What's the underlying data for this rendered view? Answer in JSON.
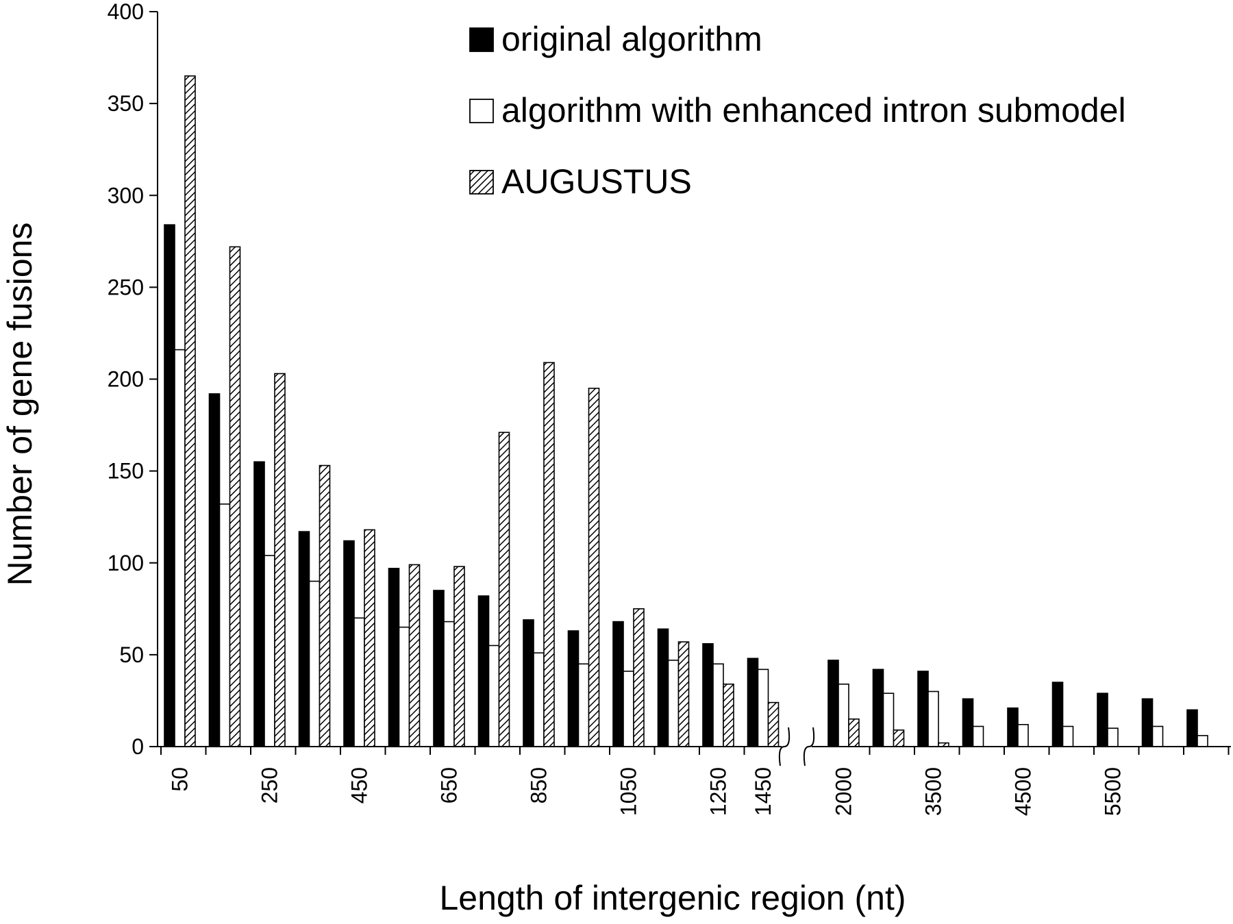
{
  "chart_data": {
    "type": "bar",
    "title": "",
    "xlabel": "Length of intergenic region (nt)",
    "ylabel": "Number of gene fusions",
    "ylim": [
      0,
      400
    ],
    "yticks": [
      0,
      50,
      100,
      150,
      200,
      250,
      300,
      350,
      400
    ],
    "grid": false,
    "legend_position": "top-right",
    "axis_break_after_index": 13,
    "x_tick_labels": [
      {
        "label": "50",
        "index": 0
      },
      {
        "label": "250",
        "index": 2
      },
      {
        "label": "450",
        "index": 4
      },
      {
        "label": "650",
        "index": 6
      },
      {
        "label": "850",
        "index": 8
      },
      {
        "label": "1050",
        "index": 10
      },
      {
        "label": "1250",
        "index": 12
      },
      {
        "label": "1450",
        "index": 13
      },
      {
        "label": "2000",
        "index": 14
      },
      {
        "label": "3500",
        "index": 16
      },
      {
        "label": "4500",
        "index": 18
      },
      {
        "label": "5500",
        "index": 20
      }
    ],
    "series": [
      {
        "name": "original algorithm",
        "style": "solid-black",
        "values": [
          284,
          192,
          155,
          117,
          112,
          97,
          85,
          82,
          69,
          63,
          68,
          64,
          56,
          48,
          47,
          42,
          41,
          26,
          21,
          35,
          29,
          26,
          20
        ]
      },
      {
        "name": "algorithm with enhanced intron submodel",
        "style": "white-outline",
        "values": [
          216,
          132,
          104,
          90,
          70,
          65,
          68,
          55,
          51,
          45,
          41,
          47,
          45,
          42,
          34,
          29,
          30,
          11,
          12,
          11,
          10,
          11,
          6
        ]
      },
      {
        "name": "AUGUSTUS",
        "style": "hatched",
        "values": [
          365,
          272,
          203,
          153,
          118,
          99,
          98,
          171,
          209,
          195,
          75,
          57,
          34,
          24,
          15,
          9,
          2,
          0,
          0,
          0,
          0,
          0,
          0
        ]
      }
    ]
  }
}
